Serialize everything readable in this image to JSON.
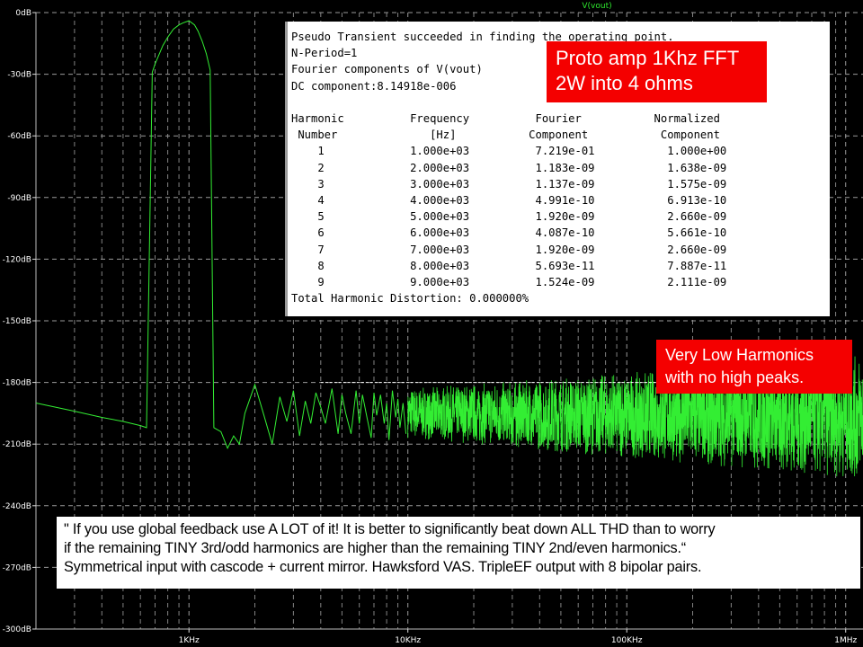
{
  "chart_data": {
    "type": "line",
    "title": "V(vout)",
    "xlabel": "",
    "ylabel": "",
    "x_scale": "log",
    "xlim": [
      200,
      1200000
    ],
    "ylim": [
      -300,
      0
    ],
    "y_ticks": [
      0,
      -30,
      -60,
      -90,
      -120,
      -150,
      -180,
      -210,
      -240,
      -270,
      -300
    ],
    "y_tick_labels": [
      "0dB",
      "-30dB",
      "-60dB",
      "-90dB",
      "-120dB",
      "-150dB",
      "-180dB",
      "-210dB",
      "-240dB",
      "-270dB",
      "-300dB"
    ],
    "x_ticks": [
      1000,
      10000,
      100000,
      1000000
    ],
    "x_tick_labels": [
      "1KHz",
      "10KHz",
      "100KHz",
      "1MHz"
    ],
    "grid": true,
    "series": [
      {
        "name": "V(vout)",
        "color": "#33ee33",
        "x": [
          200,
          300,
          400,
          500,
          600,
          640,
          680,
          700,
          760,
          800,
          850,
          900,
          940,
          1000,
          1060,
          1100,
          1150,
          1200,
          1250,
          1300,
          1400,
          1500,
          1600,
          1700,
          1800,
          2000,
          2200,
          2400,
          2600,
          2800,
          3000,
          3200,
          3400,
          3600,
          3800,
          4000,
          4200,
          4500,
          4800,
          5000,
          5200,
          5500,
          5800,
          6000,
          6200,
          6500,
          6800,
          7000,
          7200,
          7500,
          7800,
          8000,
          8200,
          8500,
          8800,
          9000,
          9200,
          9500,
          9800
        ],
        "y": [
          -190,
          -194,
          -197,
          -199,
          -201,
          -202,
          -29,
          -25,
          -16,
          -12,
          -8,
          -6,
          -5,
          -4,
          -6,
          -9,
          -14,
          -20,
          -28,
          -202,
          -204,
          -212,
          -206,
          -210,
          -195,
          -181,
          -196,
          -210,
          -187,
          -199,
          -184,
          -206,
          -189,
          -200,
          -185,
          -192,
          -200,
          -183,
          -205,
          -186,
          -195,
          -205,
          -184,
          -200,
          -186,
          -197,
          -207,
          -185,
          -196,
          -186,
          -200,
          -190,
          -208,
          -184,
          -197,
          -188,
          -202,
          -190,
          -205
        ]
      }
    ],
    "noise_band": {
      "x_start": 10000,
      "x_end": 1200000,
      "center_start": -195,
      "center_end": -197,
      "spread_start": 12,
      "spread_end": 30
    },
    "annotation": {
      "type": "arrow",
      "x_start": 4000,
      "x_end": 420000,
      "y": -180
    }
  },
  "spice_output": {
    "lines": [
      "Pseudo Transient succeeded in finding the operating point.",
      "N-Period=1",
      "Fourier components of V(vout)",
      "DC component:8.14918e-006",
      "",
      "Harmonic          Frequency          Fourier           Normalized",
      " Number              [Hz]           Component           Component",
      "    1             1.000e+03          7.219e-01           1.000e+00",
      "    2             2.000e+03          1.183e-09           1.638e-09",
      "    3             3.000e+03          1.137e-09           1.575e-09",
      "    4             4.000e+03          4.991e-10           6.913e-10",
      "    5             5.000e+03          1.920e-09           2.660e-09",
      "    6             6.000e+03          4.087e-10           5.661e-10",
      "    7             7.000e+03          1.920e-09           2.660e-09",
      "    8             8.000e+03          5.693e-11           7.887e-11",
      "    9             9.000e+03          1.524e-09           2.111e-09",
      "Total Harmonic Distortion: 0.000000%"
    ]
  },
  "callouts": {
    "box1_line1": "Proto amp 1Khz FFT",
    "box1_line2": "2W into 4 ohms",
    "box2_line1": "Very Low Harmonics",
    "box2_line2": "with no high peaks."
  },
  "quote": {
    "line1": "\" If you use global feedback use A LOT of it! It is better to significantly beat down ALL THD than to worry",
    "line2": "if the remaining TINY 3rd/odd harmonics are higher than the remaining TINY 2nd/even harmonics.“",
    "line3": "Symmetrical input with cascode + current mirror. Hawksford VAS. TripleEF output with 8 bipolar pairs."
  },
  "colors": {
    "background": "#000000",
    "trace": "#33ee33",
    "grid": "#9a9a9a",
    "callout": "#f40000"
  }
}
